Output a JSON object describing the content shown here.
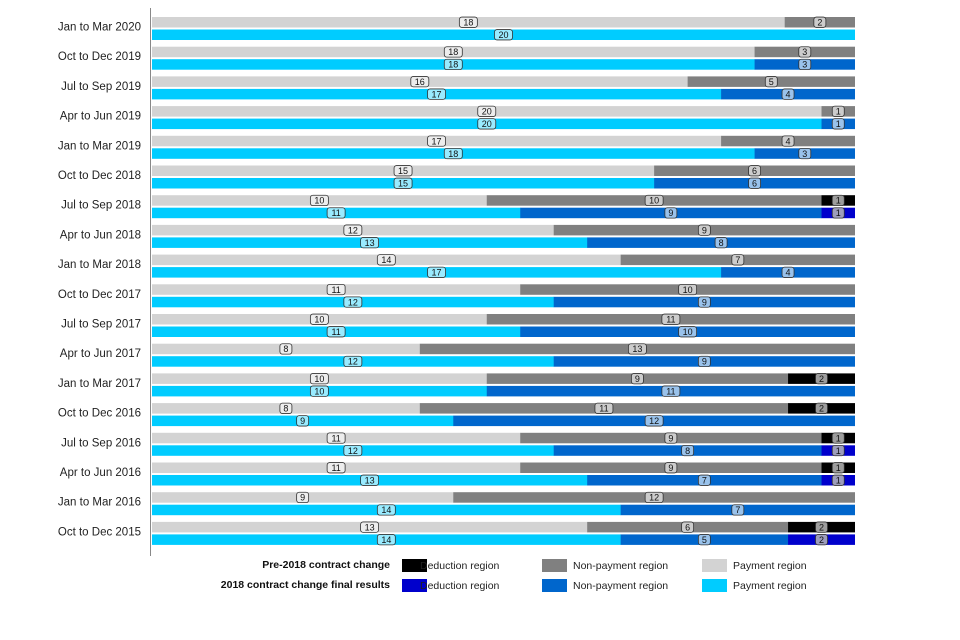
{
  "chart_data": {
    "type": "bar",
    "orientation": "horizontal",
    "stacked": "percent",
    "title": "",
    "xlabel": "",
    "ylabel": "",
    "grid": false,
    "legend_position": "bottom",
    "categories": [
      "Jan to Mar 2020",
      "Oct to Dec 2019",
      "Jul to Sep 2019",
      "Apr to Jun 2019",
      "Jan to Mar 2019",
      "Oct to Dec 2018",
      "Jul to Sep 2018",
      "Apr to Jun 2018",
      "Jan to Mar 2018",
      "Oct to Dec 2017",
      "Jul to Sep 2017",
      "Apr to Jun 2017",
      "Jan to Mar 2017",
      "Oct to Dec 2016",
      "Jul to Sep 2016",
      "Apr to Jun 2016",
      "Jan to Mar 2016",
      "Oct to Dec 2015"
    ],
    "groups": [
      {
        "name": "Pre-2018 contract change",
        "series": [
          {
            "name": "Payment region",
            "color": "#d3d3d3",
            "values": [
              18,
              18,
              16,
              20,
              17,
              15,
              10,
              12,
              14,
              11,
              10,
              8,
              10,
              8,
              11,
              11,
              9,
              13
            ]
          },
          {
            "name": "Non-payment region",
            "color": "#808080",
            "values": [
              2,
              3,
              5,
              1,
              4,
              6,
              10,
              9,
              7,
              10,
              11,
              13,
              9,
              11,
              9,
              9,
              12,
              6
            ]
          },
          {
            "name": "Deduction region",
            "color": "#000000",
            "values": [
              0,
              0,
              0,
              0,
              0,
              0,
              1,
              0,
              0,
              0,
              0,
              0,
              2,
              2,
              1,
              1,
              0,
              2
            ]
          }
        ]
      },
      {
        "name": "2018 contract change final results",
        "series": [
          {
            "name": "Payment region",
            "color": "#00ccff",
            "values": [
              20,
              18,
              17,
              20,
              18,
              15,
              11,
              13,
              17,
              12,
              11,
              12,
              10,
              9,
              12,
              13,
              14,
              14
            ]
          },
          {
            "name": "Non-payment region",
            "color": "#0066cc",
            "values": [
              0,
              3,
              4,
              1,
              3,
              6,
              9,
              8,
              4,
              9,
              10,
              9,
              11,
              12,
              8,
              7,
              7,
              5
            ]
          },
          {
            "name": "Deduction region",
            "color": "#0000cc",
            "values": [
              0,
              0,
              0,
              0,
              0,
              0,
              1,
              0,
              0,
              0,
              0,
              0,
              0,
              0,
              1,
              1,
              0,
              2
            ]
          }
        ]
      }
    ]
  },
  "legend": {
    "rows": [
      {
        "title": "Pre-2018 contract change",
        "items": [
          {
            "label": "Deduction region",
            "color": "#000000"
          },
          {
            "label": "Non-payment region",
            "color": "#808080"
          },
          {
            "label": "Payment region",
            "color": "#d3d3d3"
          }
        ]
      },
      {
        "title": "2018 contract change final results",
        "items": [
          {
            "label": "Deduction region",
            "color": "#0000cc"
          },
          {
            "label": "Non-payment region",
            "color": "#0066cc"
          },
          {
            "label": "Payment region",
            "color": "#00ccff"
          }
        ]
      }
    ]
  }
}
